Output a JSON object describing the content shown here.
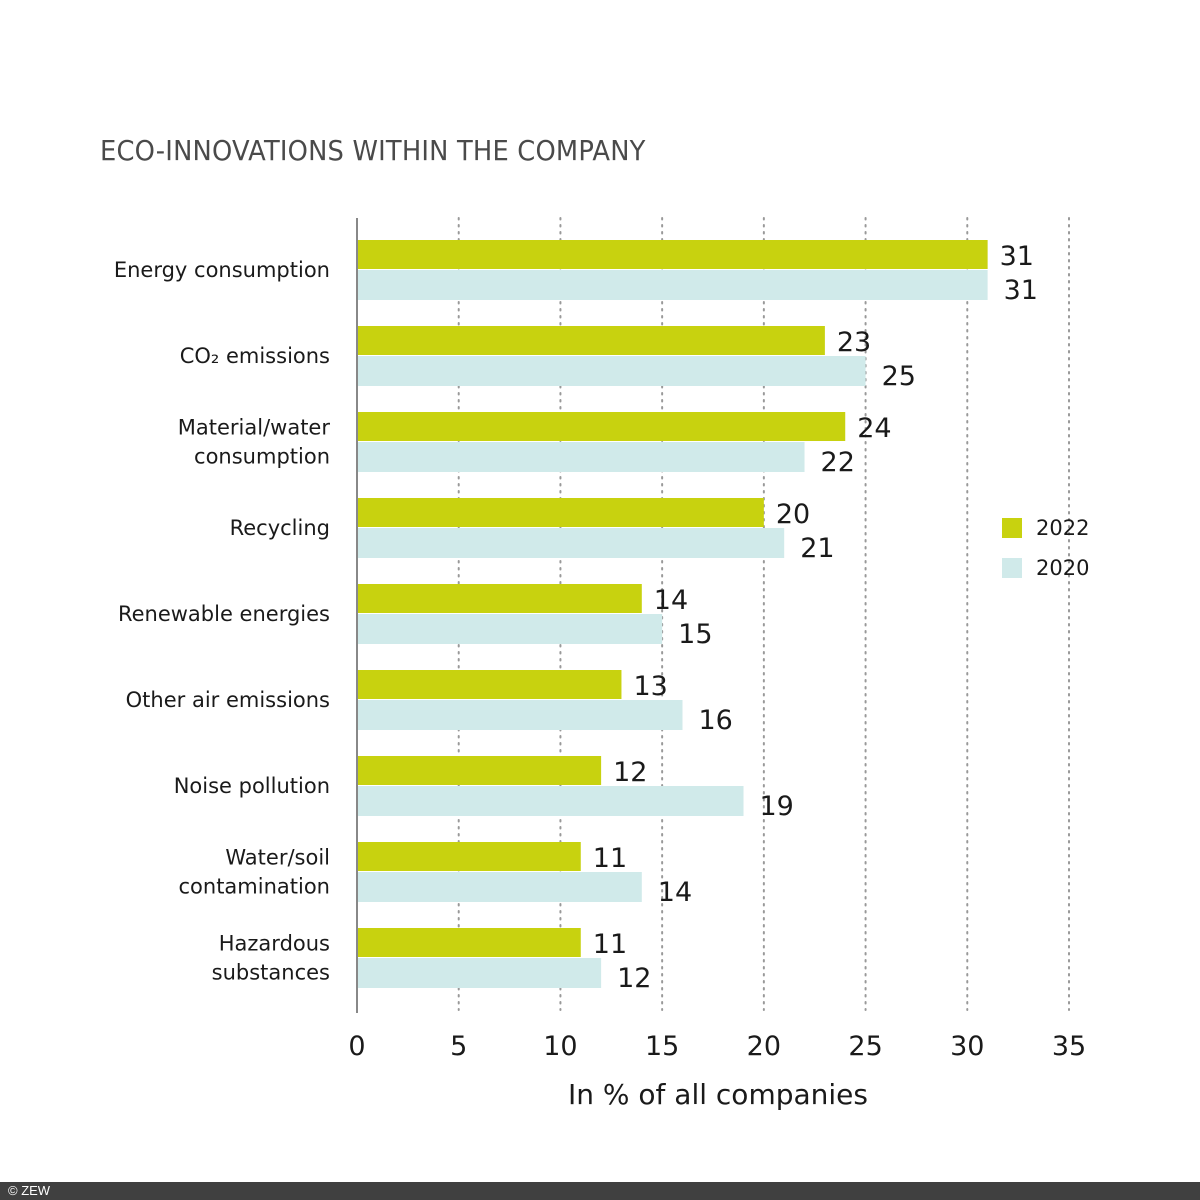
{
  "chart_data": {
    "type": "bar",
    "orientation": "horizontal",
    "title": "ECO-INNOVATIONS WITHIN THE COMPANY",
    "xlabel": "In % of all companies",
    "ylabel": "",
    "xlim": [
      0,
      35
    ],
    "xticks": [
      0,
      5,
      10,
      15,
      20,
      25,
      30,
      35
    ],
    "grid": "vertical dotted",
    "legend_position": "right",
    "categories": [
      [
        "Energy consumption"
      ],
      [
        "CO₂ emissions"
      ],
      [
        "Material/water",
        "consumption"
      ],
      [
        "Recycling"
      ],
      [
        "Renewable energies"
      ],
      [
        "Other air emissions"
      ],
      [
        "Noise pollution"
      ],
      [
        "Water/soil",
        "contamination"
      ],
      [
        "Hazardous",
        "substances"
      ]
    ],
    "series": [
      {
        "name": "2022",
        "color": "#c8d20f",
        "values": [
          31,
          23,
          24,
          20,
          14,
          13,
          12,
          11,
          11
        ]
      },
      {
        "name": "2020",
        "color": "#d0eaea",
        "values": [
          31,
          25,
          22,
          21,
          15,
          16,
          19,
          14,
          12
        ]
      }
    ]
  },
  "footer": {
    "copyright": "© ZEW"
  }
}
